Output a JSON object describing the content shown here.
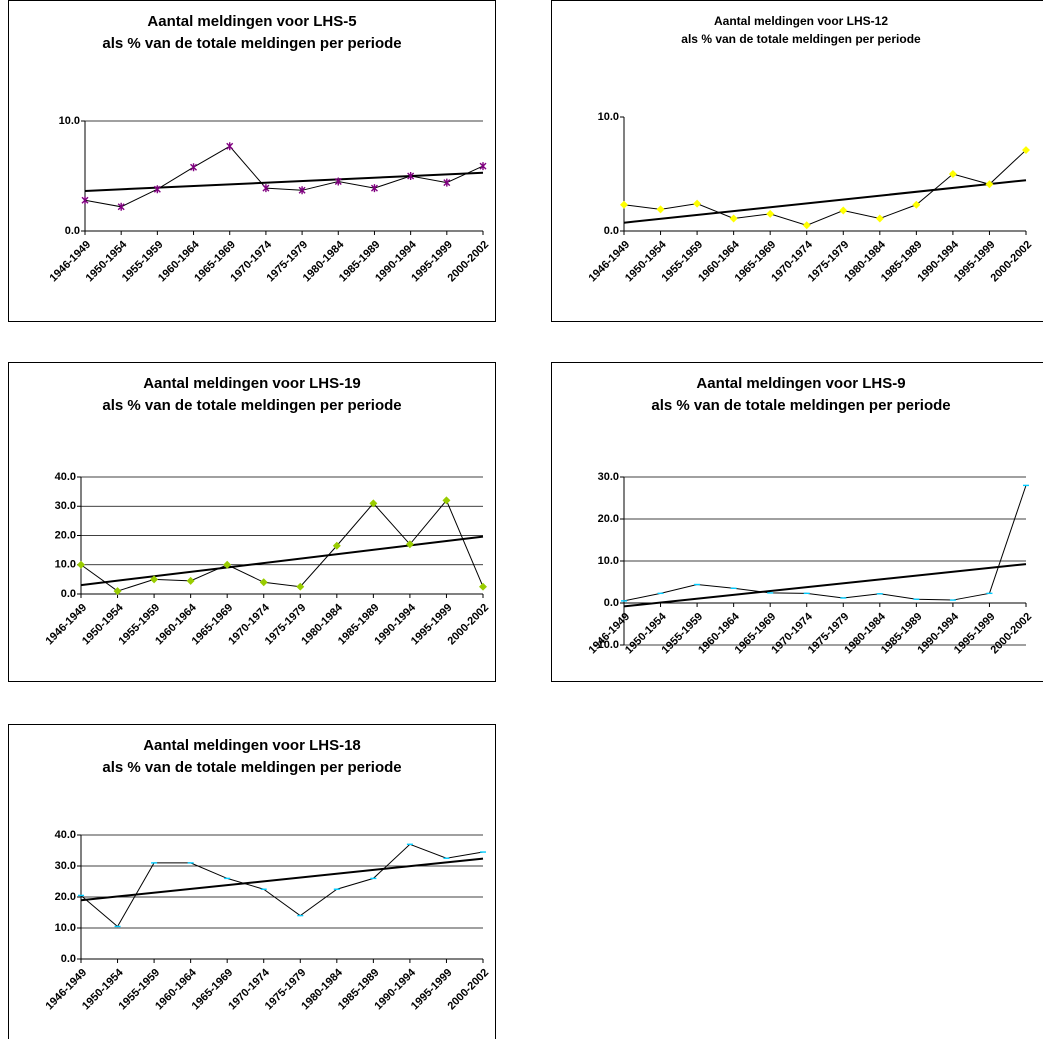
{
  "chart_data": [
    {
      "type": "line",
      "title": "Aantal meldingen voor LHS-5",
      "subtitle": "als % van de totale meldingen per periode",
      "categories": [
        "1946-1949",
        "1950-1954",
        "1955-1959",
        "1960-1964",
        "1965-1969",
        "1970-1974",
        "1975-1979",
        "1980-1984",
        "1985-1989",
        "1990-1994",
        "1995-1999",
        "2000-2002"
      ],
      "values": [
        2.8,
        2.2,
        3.8,
        5.8,
        7.7,
        3.9,
        3.7,
        4.5,
        3.9,
        5.0,
        4.4,
        5.9
      ],
      "color": "#800080",
      "marker": "star",
      "trendline": true,
      "ylim": [
        0,
        10
      ],
      "yticks": [
        {
          "value": 0,
          "label": "0.0"
        },
        {
          "value": 10,
          "label": "10.0"
        }
      ],
      "grid": true
    },
    {
      "type": "line",
      "title": "Aantal meldingen voor LHS-12",
      "subtitle": "als % van de totale meldingen per periode",
      "categories": [
        "1946-1949",
        "1950-1954",
        "1955-1959",
        "1960-1964",
        "1965-1969",
        "1970-1974",
        "1975-1979",
        "1980-1984",
        "1985-1989",
        "1990-1994",
        "1995-1999",
        "2000-2002"
      ],
      "values": [
        2.3,
        1.9,
        2.4,
        1.1,
        1.5,
        0.5,
        1.8,
        1.1,
        2.3,
        5.0,
        4.1,
        7.1
      ],
      "color": "#ffff00",
      "marker": "diamond",
      "trendline": true,
      "ylim": [
        0,
        10
      ],
      "yticks": [
        {
          "value": 0,
          "label": "0.0"
        },
        {
          "value": 10,
          "label": "10.0"
        }
      ],
      "grid": false
    },
    {
      "type": "line",
      "title": "Aantal meldingen voor LHS-19",
      "subtitle": "als % van de totale meldingen per periode",
      "categories": [
        "1946-1949",
        "1950-1954",
        "1955-1959",
        "1960-1964",
        "1965-1969",
        "1970-1974",
        "1975-1979",
        "1980-1984",
        "1985-1989",
        "1990-1994",
        "1995-1999",
        "2000-2002"
      ],
      "values": [
        10,
        1,
        5,
        4.5,
        10,
        4,
        2.5,
        16.5,
        31,
        17,
        32,
        2.5
      ],
      "color": "#99cc00",
      "marker": "diamond",
      "trendline": true,
      "ylim": [
        0,
        40
      ],
      "yticks": [
        {
          "value": 0,
          "label": "0.0"
        },
        {
          "value": 10,
          "label": "10.0"
        },
        {
          "value": 20,
          "label": "20.0"
        },
        {
          "value": 30,
          "label": "30.0"
        },
        {
          "value": 40,
          "label": "40.0"
        }
      ],
      "grid": true
    },
    {
      "type": "line",
      "title": "Aantal meldingen voor LHS-9",
      "subtitle": "als % van de totale meldingen per periode",
      "categories": [
        "1946-1949",
        "1950-1954",
        "1955-1959",
        "1960-1964",
        "1965-1969",
        "1970-1974",
        "1975-1979",
        "1980-1984",
        "1985-1989",
        "1990-1994",
        "1995-1999",
        "2000-2002"
      ],
      "values": [
        0.5,
        2.3,
        4.4,
        3.5,
        2.4,
        2.3,
        1.2,
        2.2,
        0.9,
        0.7,
        2.3,
        28
      ],
      "color": "#00ccff",
      "marker": "dash",
      "trendline": true,
      "ylim": [
        -10,
        30
      ],
      "yticks": [
        {
          "value": -10,
          "label": "-10.0"
        },
        {
          "value": 0,
          "label": "0.0"
        },
        {
          "value": 10,
          "label": "10.0"
        },
        {
          "value": 20,
          "label": "20.0"
        },
        {
          "value": 30,
          "label": "30.0"
        }
      ],
      "grid": true
    },
    {
      "type": "line",
      "title": "Aantal meldingen voor LHS-18",
      "subtitle": "als % van de totale meldingen per periode",
      "categories": [
        "1946-1949",
        "1950-1954",
        "1955-1959",
        "1960-1964",
        "1965-1969",
        "1970-1974",
        "1975-1979",
        "1980-1984",
        "1985-1989",
        "1990-1994",
        "1995-1999",
        "2000-2002"
      ],
      "values": [
        20.5,
        10.5,
        31,
        31,
        26,
        22.5,
        14,
        22.5,
        26,
        37,
        32.5,
        34.5
      ],
      "color": "#00ccff",
      "marker": "dash",
      "trendline": true,
      "ylim": [
        0,
        40
      ],
      "yticks": [
        {
          "value": 0,
          "label": "0.0"
        },
        {
          "value": 10,
          "label": "10.0"
        },
        {
          "value": 20,
          "label": "20.0"
        },
        {
          "value": 30,
          "label": "30.0"
        },
        {
          "value": 40,
          "label": "40.0"
        }
      ],
      "grid": true
    }
  ]
}
